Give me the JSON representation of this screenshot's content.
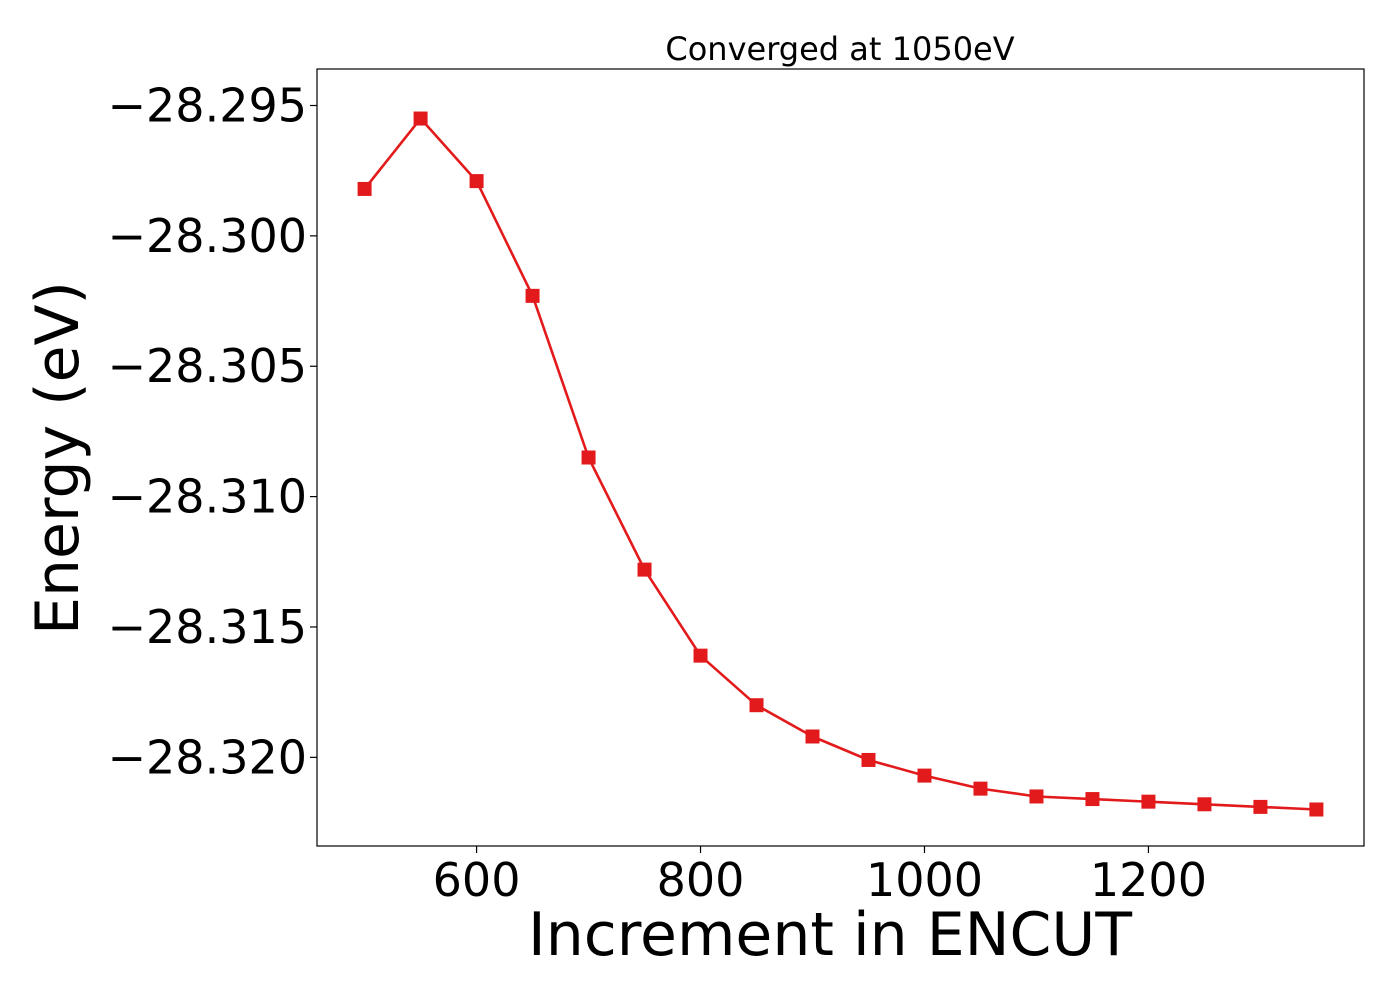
{
  "chart_data": {
    "type": "line",
    "title": "Converged at 1050eV",
    "xlabel": "Increment in ENCUT",
    "ylabel": "Energy (eV)",
    "xlim": [
      457.5,
      1392.5
    ],
    "ylim": [
      -28.3234,
      -28.2936
    ],
    "xticks": [
      600,
      800,
      1000,
      1200
    ],
    "yticks": [
      -28.295,
      -28.3,
      -28.305,
      -28.31,
      -28.315,
      -28.32
    ],
    "xtick_labels": [
      "600",
      "800",
      "1000",
      "1200"
    ],
    "ytick_labels": [
      "−28.295",
      "−28.300",
      "−28.305",
      "−28.310",
      "−28.315",
      "−28.320"
    ],
    "grid": false,
    "marker": "square",
    "color": "#e31a1c",
    "series": [
      {
        "x": [
          500,
          550,
          600,
          650,
          700,
          750,
          800,
          850,
          900,
          950,
          1000,
          1050,
          1100,
          1150,
          1200,
          1250,
          1300,
          1350
        ],
        "y": [
          -28.2982,
          -28.2955,
          -28.2979,
          -28.3023,
          -28.3085,
          -28.3128,
          -28.3161,
          -28.318,
          -28.3192,
          -28.3201,
          -28.3207,
          -28.3212,
          -28.3215,
          -28.3216,
          -28.3217,
          -28.3218,
          -28.3219,
          -28.322
        ]
      }
    ]
  }
}
